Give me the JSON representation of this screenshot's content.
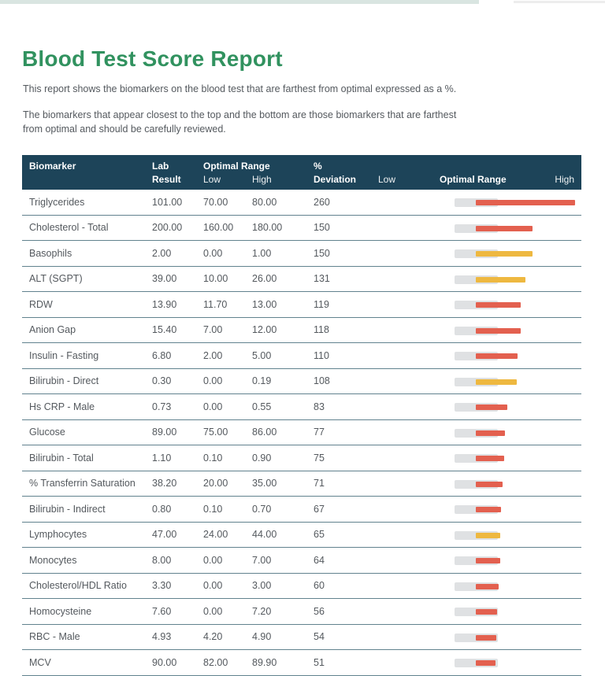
{
  "page": {
    "title": "Blood Test Score Report",
    "intro1": "This report shows the biomarkers on the blood test that are farthest from optimal expressed as a %.",
    "intro2_line1": "The biomarkers that appear closest to the top and the bottom are those biomarkers that are farthest",
    "intro2_line2": "from optimal and should be carefully reviewed."
  },
  "colors": {
    "header_bg": "#1d4459",
    "title_green": "#31925f",
    "bar_red": "#e3604f",
    "bar_yellow": "#eeb840",
    "optimal_zone_grey": "#dfe1e3",
    "row_divider": "#61828e",
    "top_strip": "#d9e5e1"
  },
  "table": {
    "headers": {
      "biomarker": "Biomarker",
      "lab_line1": "Lab",
      "lab_line2": "Result",
      "optimal_range": "Optimal Range",
      "low": "Low",
      "high": "High",
      "dev_line1": "%",
      "dev_line2": "Deviation",
      "chart_low": "Low",
      "chart_optimal_range": "Optimal Range",
      "chart_high": "High"
    },
    "rows": [
      {
        "biomarker": "Triglycerides",
        "lab_result": "101.00",
        "low": "70.00",
        "high": "80.00",
        "deviation": 260,
        "bar_color": "red"
      },
      {
        "biomarker": "Cholesterol - Total",
        "lab_result": "200.00",
        "low": "160.00",
        "high": "180.00",
        "deviation": 150,
        "bar_color": "red"
      },
      {
        "biomarker": "Basophils",
        "lab_result": "2.00",
        "low": "0.00",
        "high": "1.00",
        "deviation": 150,
        "bar_color": "yellow"
      },
      {
        "biomarker": "ALT (SGPT)",
        "lab_result": "39.00",
        "low": "10.00",
        "high": "26.00",
        "deviation": 131,
        "bar_color": "yellow"
      },
      {
        "biomarker": "RDW",
        "lab_result": "13.90",
        "low": "11.70",
        "high": "13.00",
        "deviation": 119,
        "bar_color": "red"
      },
      {
        "biomarker": "Anion Gap",
        "lab_result": "15.40",
        "low": "7.00",
        "high": "12.00",
        "deviation": 118,
        "bar_color": "red"
      },
      {
        "biomarker": "Insulin - Fasting",
        "lab_result": "6.80",
        "low": "2.00",
        "high": "5.00",
        "deviation": 110,
        "bar_color": "red"
      },
      {
        "biomarker": "Bilirubin - Direct",
        "lab_result": "0.30",
        "low": "0.00",
        "high": "0.19",
        "deviation": 108,
        "bar_color": "yellow"
      },
      {
        "biomarker": "Hs CRP - Male",
        "lab_result": "0.73",
        "low": "0.00",
        "high": "0.55",
        "deviation": 83,
        "bar_color": "red"
      },
      {
        "biomarker": "Glucose",
        "lab_result": "89.00",
        "low": "75.00",
        "high": "86.00",
        "deviation": 77,
        "bar_color": "red"
      },
      {
        "biomarker": "Bilirubin - Total",
        "lab_result": "1.10",
        "low": "0.10",
        "high": "0.90",
        "deviation": 75,
        "bar_color": "red"
      },
      {
        "biomarker": "% Transferrin Saturation",
        "lab_result": "38.20",
        "low": "20.00",
        "high": "35.00",
        "deviation": 71,
        "bar_color": "red"
      },
      {
        "biomarker": "Bilirubin - Indirect",
        "lab_result": "0.80",
        "low": "0.10",
        "high": "0.70",
        "deviation": 67,
        "bar_color": "red"
      },
      {
        "biomarker": "Lymphocytes",
        "lab_result": "47.00",
        "low": "24.00",
        "high": "44.00",
        "deviation": 65,
        "bar_color": "yellow"
      },
      {
        "biomarker": "Monocytes",
        "lab_result": "8.00",
        "low": "0.00",
        "high": "7.00",
        "deviation": 64,
        "bar_color": "red"
      },
      {
        "biomarker": "Cholesterol/HDL Ratio",
        "lab_result": "3.30",
        "low": "0.00",
        "high": "3.00",
        "deviation": 60,
        "bar_color": "red"
      },
      {
        "biomarker": "Homocysteine",
        "lab_result": "7.60",
        "low": "0.00",
        "high": "7.20",
        "deviation": 56,
        "bar_color": "red"
      },
      {
        "biomarker": "RBC - Male",
        "lab_result": "4.93",
        "low": "4.20",
        "high": "4.90",
        "deviation": 54,
        "bar_color": "red"
      },
      {
        "biomarker": "MCV",
        "lab_result": "90.00",
        "low": "82.00",
        "high": "89.90",
        "deviation": 51,
        "bar_color": "red"
      }
    ]
  }
}
